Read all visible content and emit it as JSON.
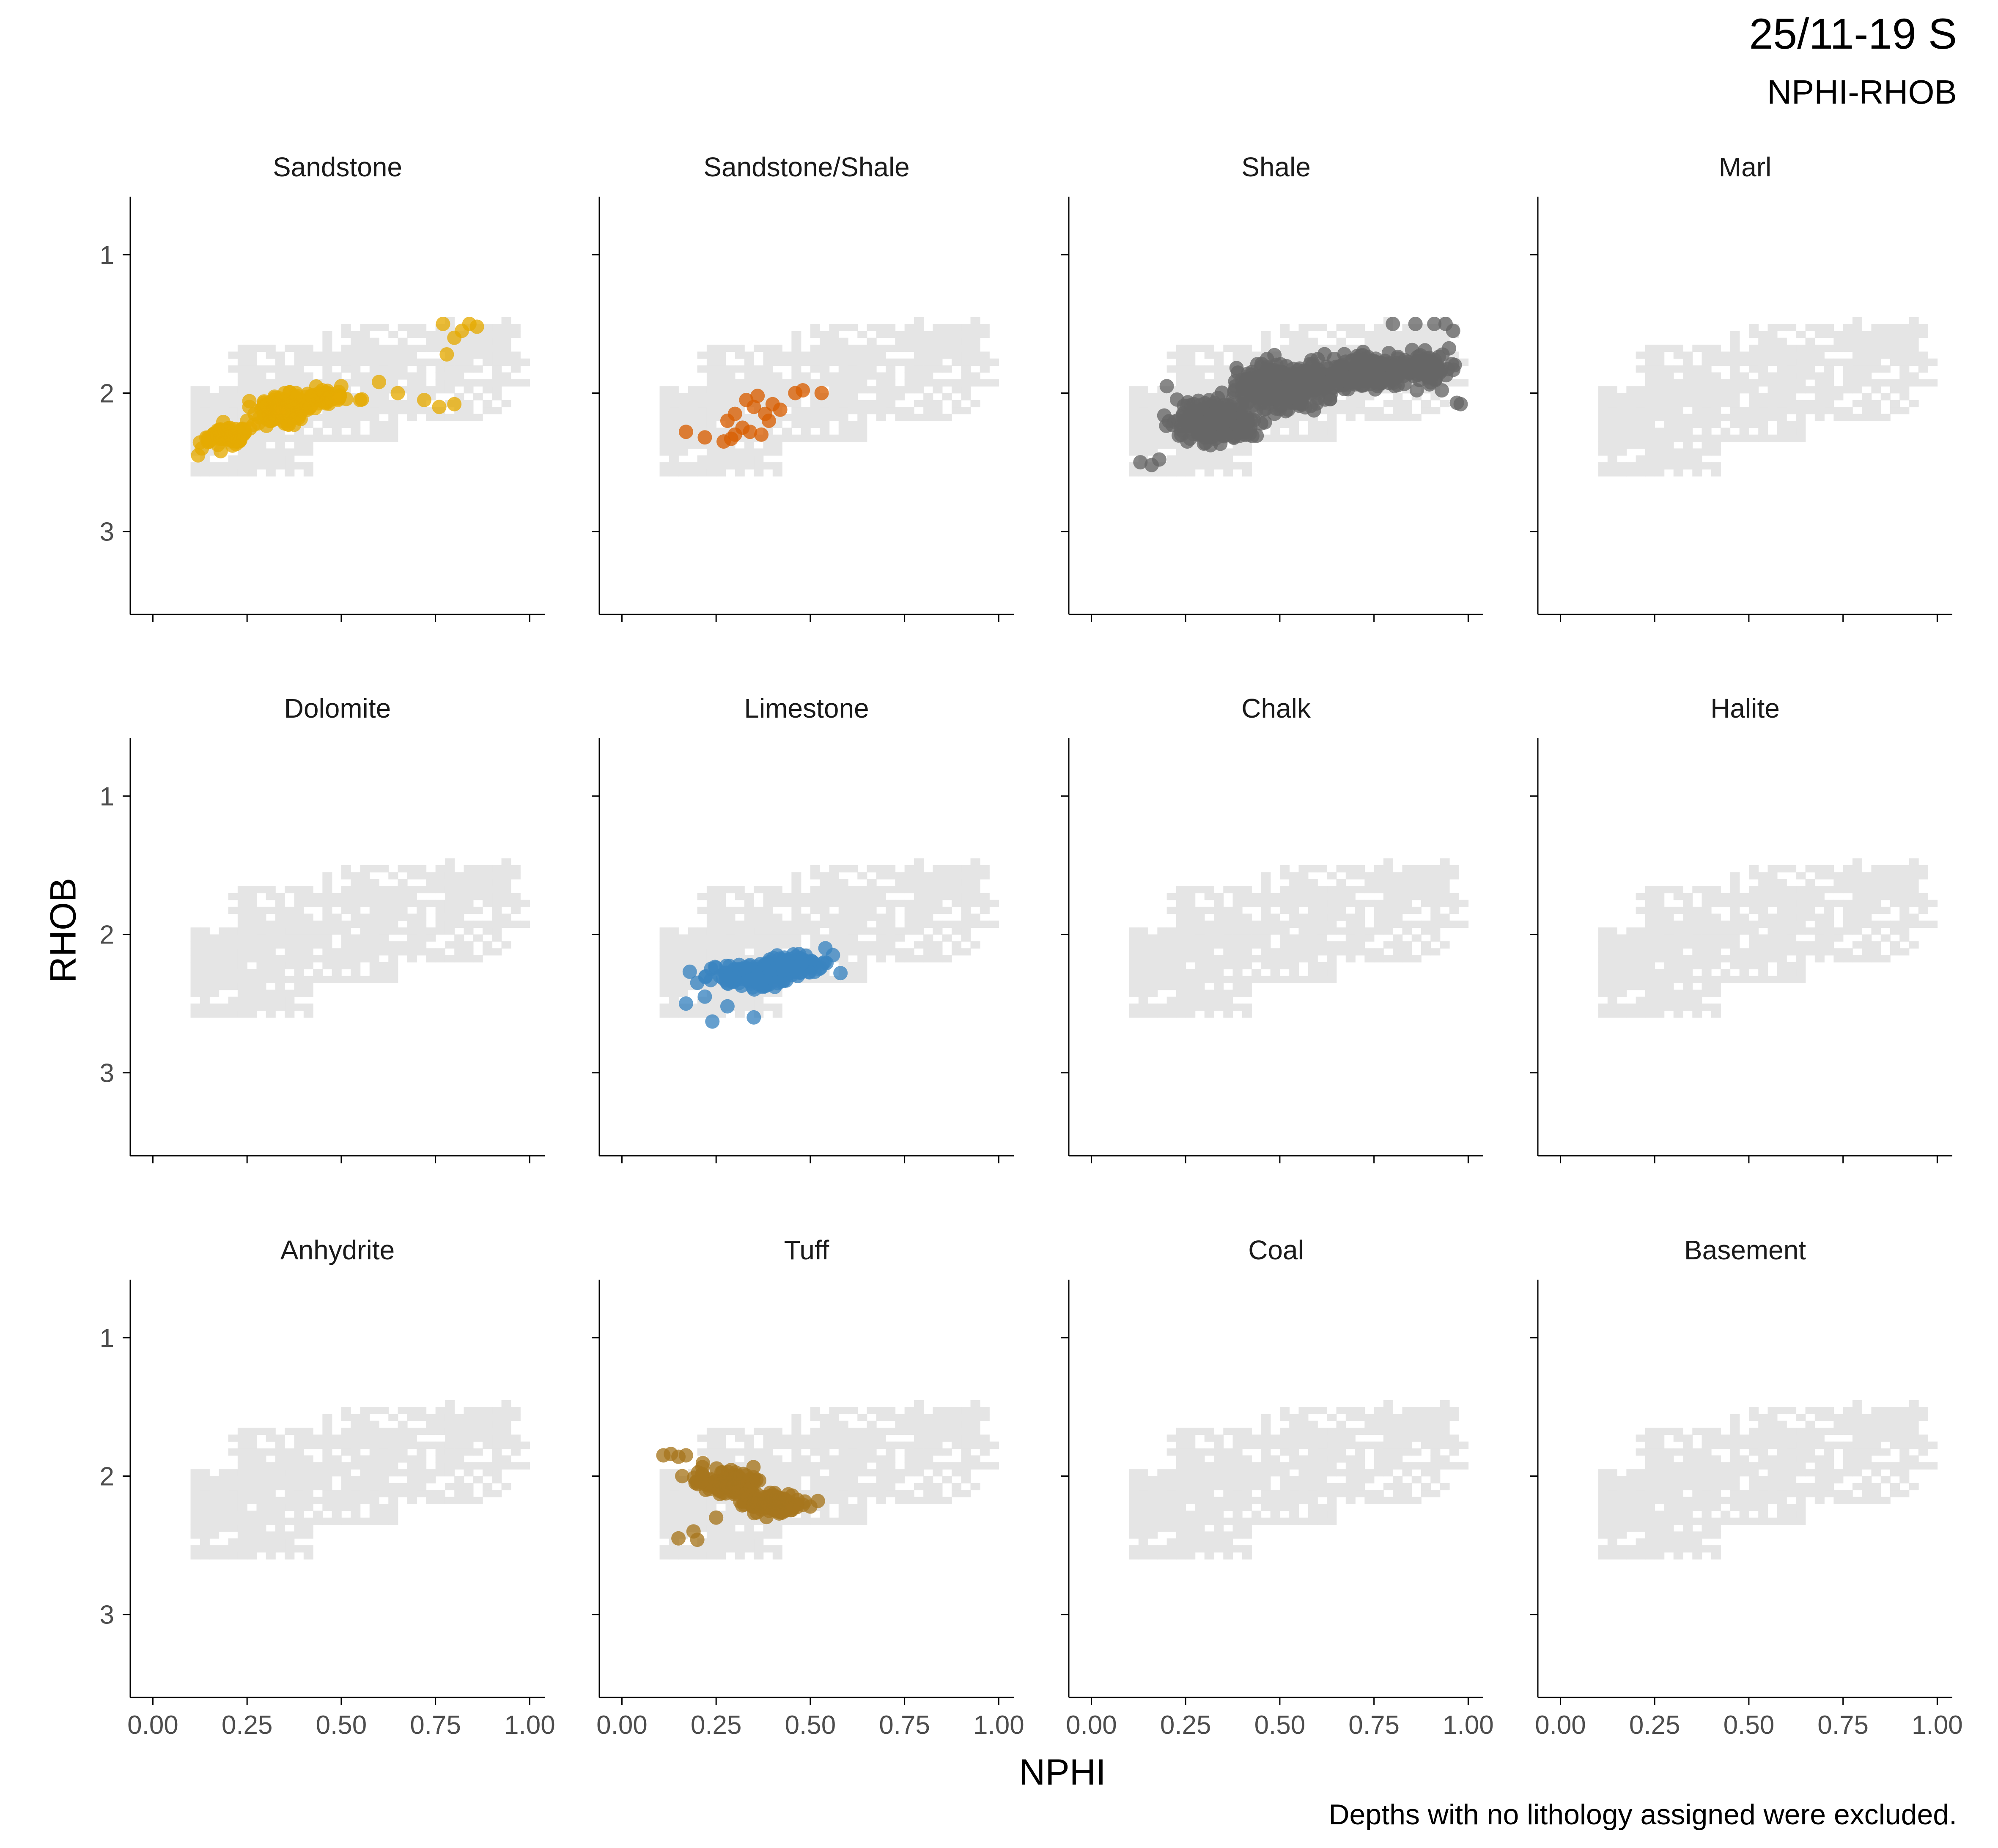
{
  "header": {
    "title": "25/11-19 S",
    "subtitle": "NPHI-RHOB"
  },
  "caption": "Depths with no lithology assigned were excluded.",
  "colors": {
    "background_density": "#e5e5e5",
    "axis": "#000000",
    "tick_text": "#4d4d4d"
  },
  "chart_data": {
    "type": "scatter",
    "layout": "facet-grid-3x4",
    "xlabel": "NPHI",
    "ylabel": "RHOB",
    "xlim": [
      -0.06,
      1.04
    ],
    "ylim": [
      3.6,
      0.58
    ],
    "y_reversed": true,
    "x_ticks": [
      0.0,
      0.25,
      0.5,
      0.75,
      1.0
    ],
    "x_tick_labels": [
      "0.00",
      "0.25",
      "0.50",
      "0.75",
      "1.00"
    ],
    "y_ticks": [
      1,
      2,
      3
    ],
    "y_tick_labels": [
      "1",
      "2",
      "3"
    ],
    "grid": false,
    "background_layer": "all-depths density tiles shown in light grey in every panel",
    "background_blobs": [
      {
        "x": [
          0.1,
          0.42
        ],
        "y": [
          1.95,
          2.6
        ],
        "n": 340
      },
      {
        "x": [
          0.22,
          0.65
        ],
        "y": [
          1.65,
          2.35
        ],
        "n": 320
      },
      {
        "x": [
          0.45,
          0.95
        ],
        "y": [
          1.5,
          2.2
        ],
        "n": 300
      },
      {
        "x": [
          0.75,
          0.98
        ],
        "y": [
          1.48,
          1.95
        ],
        "n": 90
      }
    ],
    "panels": [
      {
        "title": "Sandstone",
        "color": "#E6AB02",
        "points": [
          {
            "x": 0.12,
            "y": 2.45
          },
          {
            "x": 0.13,
            "y": 2.4
          },
          {
            "x": 0.15,
            "y": 2.35
          },
          {
            "x": 0.16,
            "y": 2.3
          },
          {
            "x": 0.18,
            "y": 2.42
          },
          {
            "x": 0.2,
            "y": 2.3
          },
          {
            "x": 0.22,
            "y": 2.26
          },
          {
            "x": 0.24,
            "y": 2.3
          },
          {
            "x": 0.25,
            "y": 2.2
          },
          {
            "x": 0.27,
            "y": 2.15
          },
          {
            "x": 0.3,
            "y": 2.1
          },
          {
            "x": 0.32,
            "y": 2.05
          },
          {
            "x": 0.35,
            "y": 2.0
          },
          {
            "x": 0.38,
            "y": 2.0
          },
          {
            "x": 0.42,
            "y": 2.02
          },
          {
            "x": 0.45,
            "y": 1.98
          },
          {
            "x": 0.5,
            "y": 1.95
          },
          {
            "x": 0.55,
            "y": 2.05
          },
          {
            "x": 0.6,
            "y": 1.92
          },
          {
            "x": 0.65,
            "y": 2.0
          },
          {
            "x": 0.72,
            "y": 2.05
          },
          {
            "x": 0.76,
            "y": 2.1
          },
          {
            "x": 0.8,
            "y": 2.08
          },
          {
            "x": 0.77,
            "y": 1.5
          },
          {
            "x": 0.8,
            "y": 1.6
          },
          {
            "x": 0.82,
            "y": 1.55
          },
          {
            "x": 0.84,
            "y": 1.5
          },
          {
            "x": 0.86,
            "y": 1.52
          },
          {
            "x": 0.78,
            "y": 1.72
          }
        ],
        "clusters": [
          {
            "cx": 0.2,
            "cy": 2.3,
            "sx": 0.05,
            "sy": 0.06,
            "n": 70
          },
          {
            "cx": 0.34,
            "cy": 2.12,
            "sx": 0.06,
            "sy": 0.08,
            "n": 140
          },
          {
            "cx": 0.46,
            "cy": 2.03,
            "sx": 0.05,
            "sy": 0.05,
            "n": 40
          }
        ]
      },
      {
        "title": "Sandstone/Shale",
        "color": "#D95F02",
        "points": [
          {
            "x": 0.17,
            "y": 2.28
          },
          {
            "x": 0.22,
            "y": 2.32
          },
          {
            "x": 0.27,
            "y": 2.35
          },
          {
            "x": 0.28,
            "y": 2.2
          },
          {
            "x": 0.3,
            "y": 2.3
          },
          {
            "x": 0.3,
            "y": 2.15
          },
          {
            "x": 0.32,
            "y": 2.25
          },
          {
            "x": 0.33,
            "y": 2.05
          },
          {
            "x": 0.34,
            "y": 2.28
          },
          {
            "x": 0.35,
            "y": 2.1
          },
          {
            "x": 0.36,
            "y": 2.02
          },
          {
            "x": 0.37,
            "y": 2.3
          },
          {
            "x": 0.38,
            "y": 2.15
          },
          {
            "x": 0.39,
            "y": 2.2
          },
          {
            "x": 0.4,
            "y": 2.08
          },
          {
            "x": 0.42,
            "y": 2.12
          },
          {
            "x": 0.46,
            "y": 2.0
          },
          {
            "x": 0.48,
            "y": 1.98
          },
          {
            "x": 0.53,
            "y": 2.0
          },
          {
            "x": 0.29,
            "y": 2.33
          }
        ],
        "clusters": []
      },
      {
        "title": "Shale",
        "color": "#666666",
        "points": [
          {
            "x": 0.13,
            "y": 2.5
          },
          {
            "x": 0.16,
            "y": 2.52
          },
          {
            "x": 0.18,
            "y": 2.48
          },
          {
            "x": 0.2,
            "y": 1.95
          },
          {
            "x": 0.8,
            "y": 1.5
          },
          {
            "x": 0.86,
            "y": 1.5
          },
          {
            "x": 0.91,
            "y": 1.5
          },
          {
            "x": 0.94,
            "y": 1.5
          },
          {
            "x": 0.96,
            "y": 1.55
          },
          {
            "x": 0.97,
            "y": 2.07
          },
          {
            "x": 0.98,
            "y": 2.08
          },
          {
            "x": 0.93,
            "y": 1.98
          }
        ],
        "clusters": [
          {
            "cx": 0.33,
            "cy": 2.2,
            "sx": 0.08,
            "sy": 0.12,
            "n": 320
          },
          {
            "cx": 0.52,
            "cy": 1.95,
            "sx": 0.1,
            "sy": 0.14,
            "n": 360
          },
          {
            "cx": 0.73,
            "cy": 1.85,
            "sx": 0.1,
            "sy": 0.1,
            "n": 220
          },
          {
            "cx": 0.88,
            "cy": 1.82,
            "sx": 0.06,
            "sy": 0.1,
            "n": 110
          }
        ]
      },
      {
        "title": "Marl",
        "color": "#666666",
        "points": [],
        "clusters": []
      },
      {
        "title": "Dolomite",
        "color": "#666666",
        "points": [],
        "clusters": []
      },
      {
        "title": "Limestone",
        "color": "#3A84C0",
        "points": [
          {
            "x": 0.17,
            "y": 2.5
          },
          {
            "x": 0.18,
            "y": 2.27
          },
          {
            "x": 0.2,
            "y": 2.35
          },
          {
            "x": 0.22,
            "y": 2.45
          },
          {
            "x": 0.24,
            "y": 2.63
          },
          {
            "x": 0.35,
            "y": 2.6
          },
          {
            "x": 0.28,
            "y": 2.52
          },
          {
            "x": 0.58,
            "y": 2.28
          },
          {
            "x": 0.56,
            "y": 2.15
          },
          {
            "x": 0.54,
            "y": 2.1
          }
        ],
        "clusters": [
          {
            "cx": 0.34,
            "cy": 2.3,
            "sx": 0.08,
            "sy": 0.08,
            "n": 120
          },
          {
            "cx": 0.46,
            "cy": 2.22,
            "sx": 0.06,
            "sy": 0.06,
            "n": 90
          }
        ]
      },
      {
        "title": "Chalk",
        "color": "#666666",
        "points": [],
        "clusters": []
      },
      {
        "title": "Halite",
        "color": "#666666",
        "points": [],
        "clusters": []
      },
      {
        "title": "Anhydrite",
        "color": "#666666",
        "points": [],
        "clusters": []
      },
      {
        "title": "Tuff",
        "color": "#A6761D",
        "points": [
          {
            "x": 0.11,
            "y": 1.85
          },
          {
            "x": 0.13,
            "y": 1.84
          },
          {
            "x": 0.15,
            "y": 1.86
          },
          {
            "x": 0.17,
            "y": 1.85
          },
          {
            "x": 0.15,
            "y": 2.45
          },
          {
            "x": 0.19,
            "y": 2.4
          },
          {
            "x": 0.2,
            "y": 2.46
          },
          {
            "x": 0.16,
            "y": 2.0
          },
          {
            "x": 0.25,
            "y": 2.3
          },
          {
            "x": 0.5,
            "y": 2.22
          },
          {
            "x": 0.52,
            "y": 2.18
          }
        ],
        "clusters": [
          {
            "cx": 0.28,
            "cy": 2.05,
            "sx": 0.06,
            "sy": 0.08,
            "n": 110
          },
          {
            "cx": 0.4,
            "cy": 2.2,
            "sx": 0.06,
            "sy": 0.06,
            "n": 130
          }
        ]
      },
      {
        "title": "Coal",
        "color": "#666666",
        "points": [],
        "clusters": []
      },
      {
        "title": "Basement",
        "color": "#666666",
        "points": [],
        "clusters": []
      }
    ]
  }
}
